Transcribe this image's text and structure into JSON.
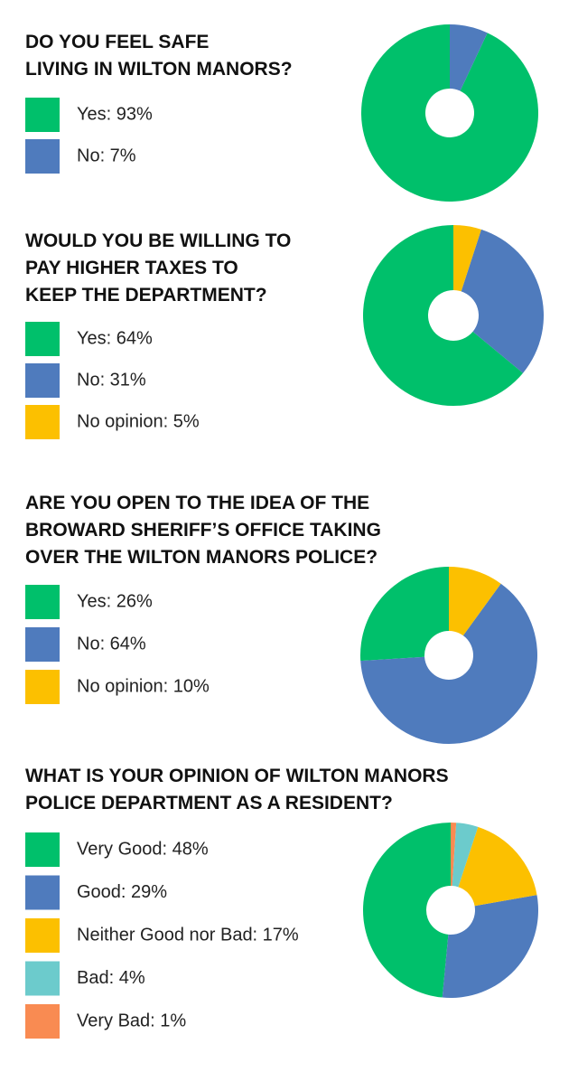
{
  "chart_data": [
    {
      "type": "pie",
      "title": [
        "DO YOU FEEL SAFE",
        "LIVING IN WILTON MANORS?"
      ],
      "categories": [
        "Yes: 93%",
        "No: 7%"
      ],
      "values": [
        93,
        7
      ],
      "colors": [
        "#00c06b",
        "#4f7bbd"
      ]
    },
    {
      "type": "pie",
      "title": [
        "WOULD YOU BE WILLING TO",
        "PAY HIGHER TAXES TO",
        "KEEP THE DEPARTMENT?"
      ],
      "categories": [
        "Yes: 64%",
        "No: 31%",
        "No opinion: 5%"
      ],
      "values": [
        64,
        31,
        5
      ],
      "colors": [
        "#00c06b",
        "#4f7bbd",
        "#fcc000"
      ]
    },
    {
      "type": "pie",
      "title": [
        "ARE YOU OPEN TO THE IDEA OF THE",
        "BROWARD SHERIFF’S OFFICE TAKING",
        "OVER THE WILTON MANORS POLICE?"
      ],
      "categories": [
        "Yes: 26%",
        "No: 64%",
        "No opinion: 10%"
      ],
      "values": [
        26,
        64,
        10
      ],
      "colors": [
        "#00c06b",
        "#4f7bbd",
        "#fcc000"
      ]
    },
    {
      "type": "pie",
      "title": [
        "WHAT IS YOUR OPINION OF WILTON MANORS",
        "POLICE DEPARTMENT AS A RESIDENT?"
      ],
      "categories": [
        "Very Good: 48%",
        "Good: 29%",
        "Neither Good nor Bad: 17%",
        "Bad: 4%",
        "Very Bad: 1%"
      ],
      "values": [
        48,
        29,
        17,
        4,
        1
      ],
      "colors": [
        "#00c06b",
        "#4f7bbd",
        "#fcc000",
        "#6ccbcc",
        "#f98b52"
      ]
    }
  ]
}
